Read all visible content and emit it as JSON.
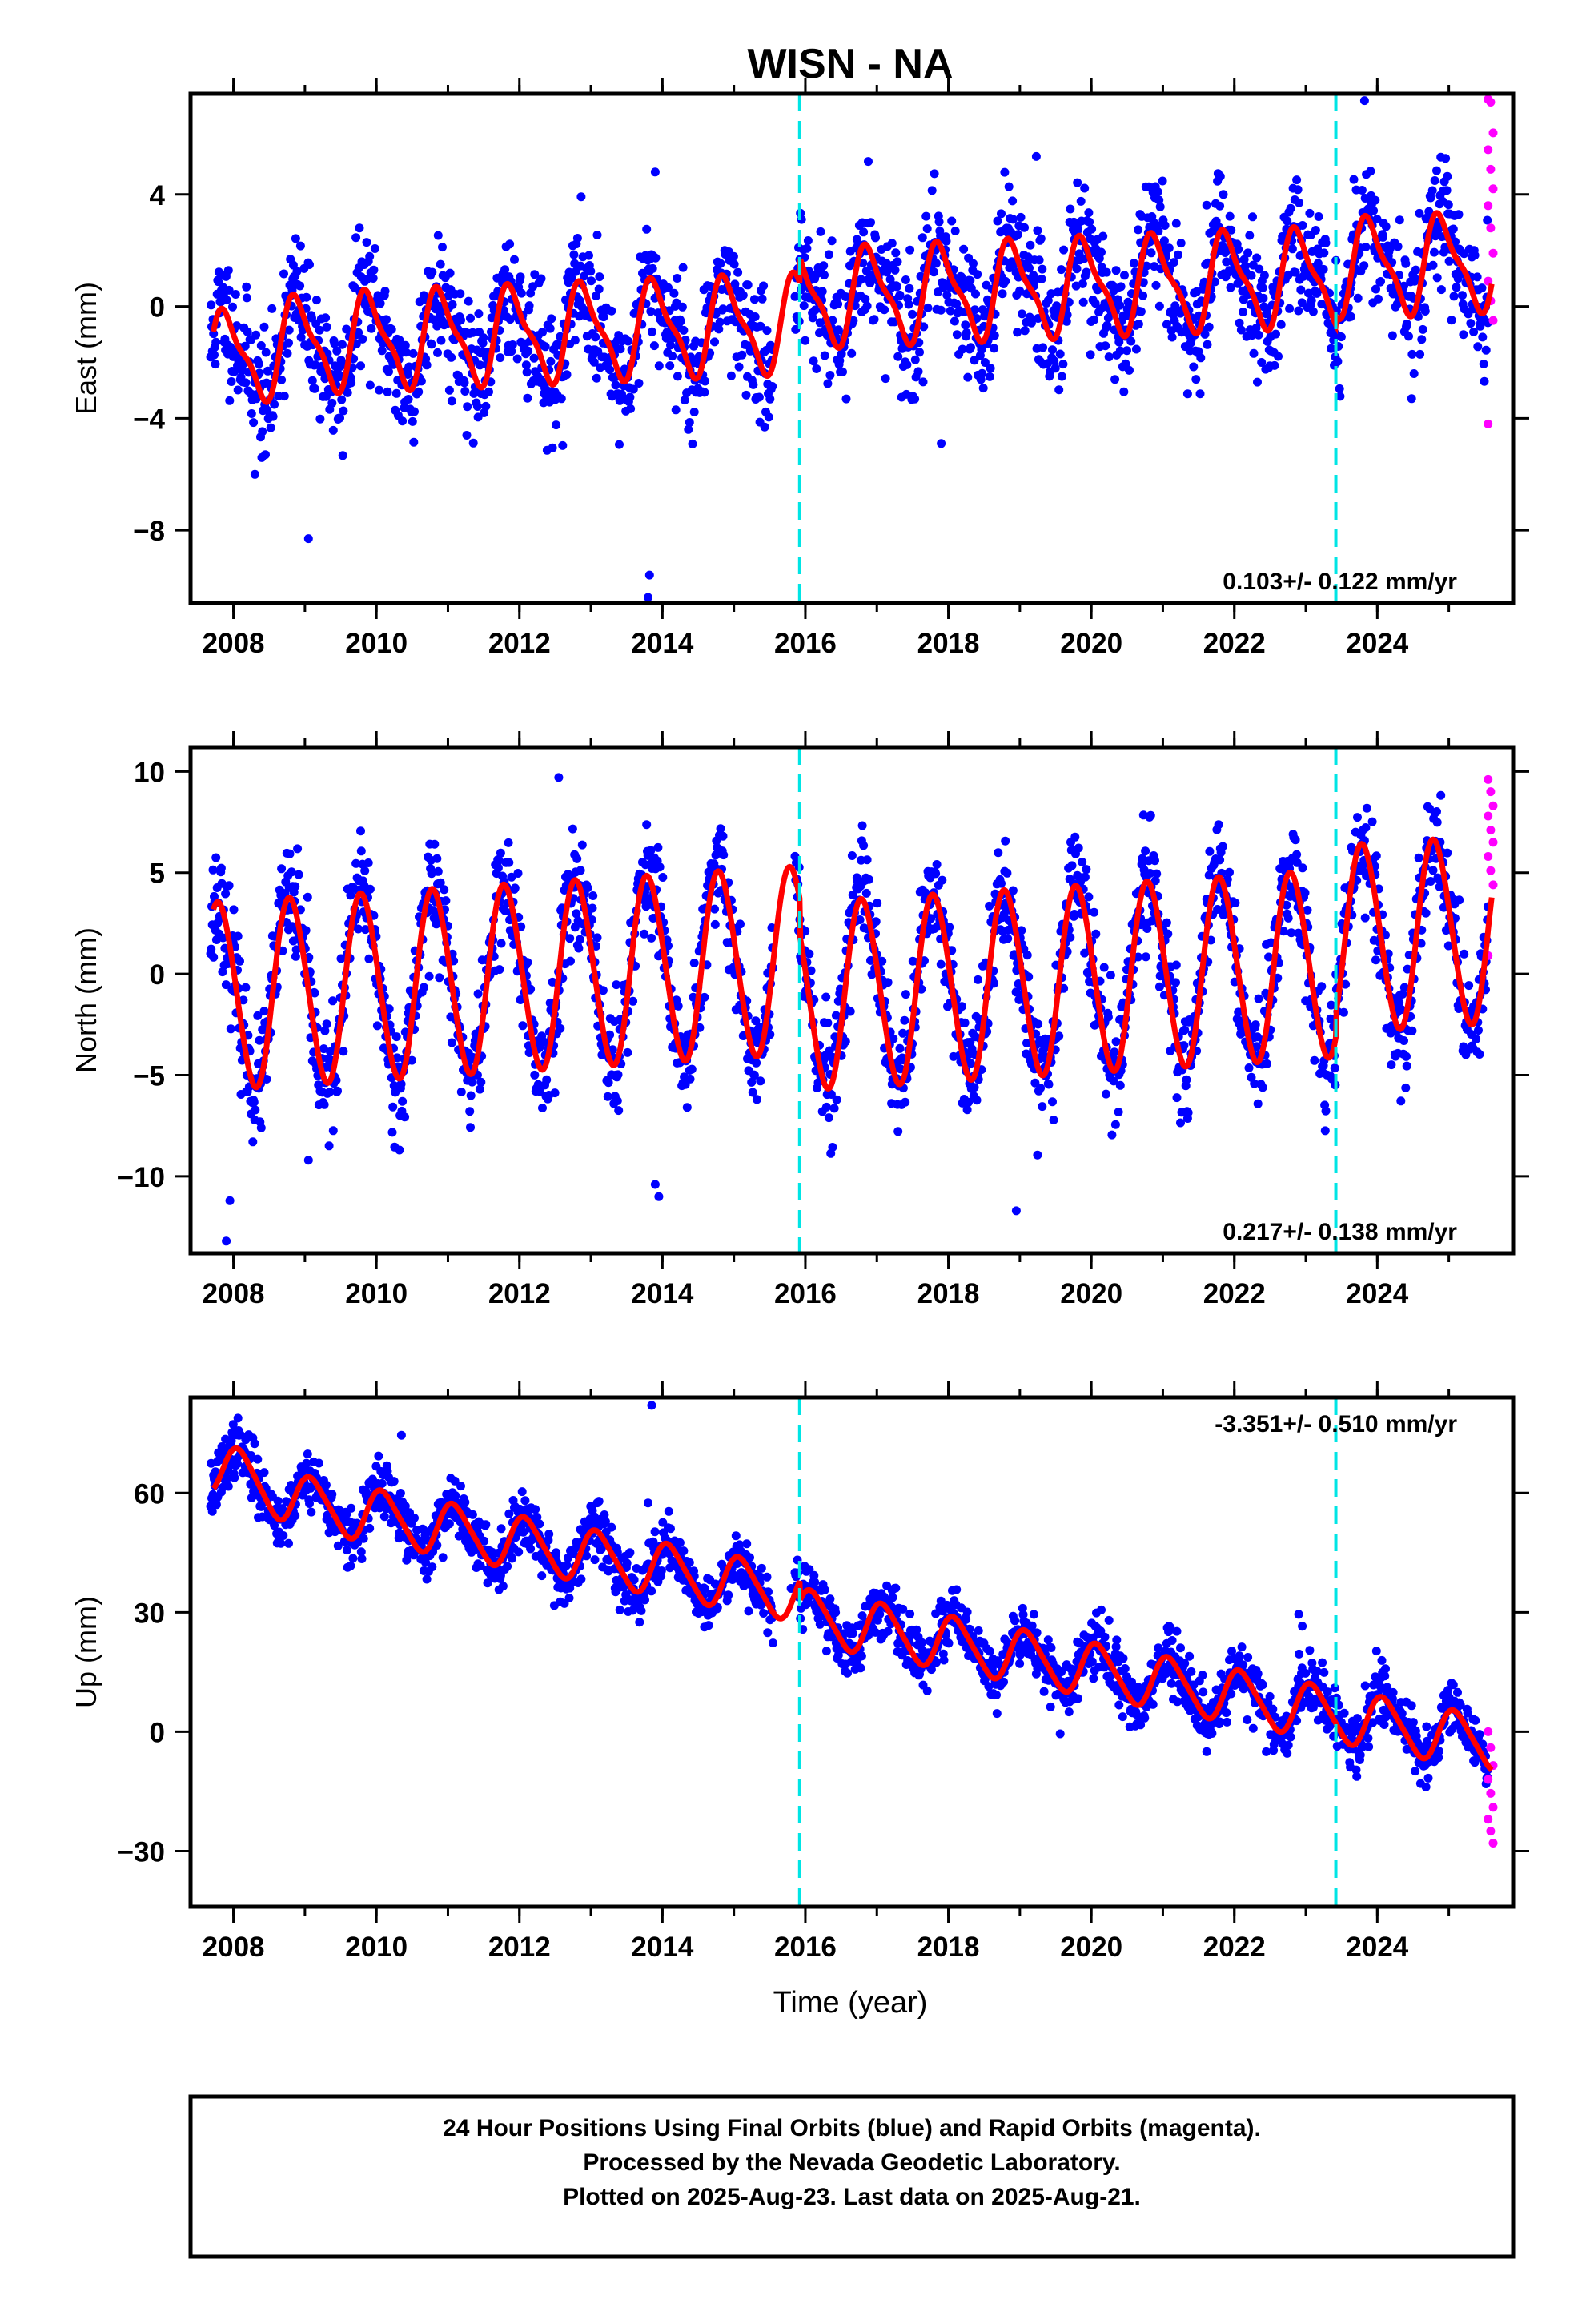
{
  "title": "WISN - NA",
  "footer": {
    "lines": [
      "24 Hour Positions Using Final Orbits (blue) and Rapid Orbits (magenta).",
      "Processed by the Nevada Geodetic Laboratory.",
      "Plotted on 2025-Aug-23. Last data on 2025-Aug-21."
    ]
  },
  "colors": {
    "final_orbits": "#0000ff",
    "rapid_orbits": "#ff00ff",
    "model_fit": "#ff0000",
    "steps": "#00e5e5"
  },
  "chart_data": [
    {
      "type": "scatter",
      "name": "east",
      "ylabel": "East (mm)",
      "xlabel": "",
      "xlim": [
        2007.4,
        2025.9
      ],
      "ylim": [
        -10.6,
        7.6
      ],
      "yticks": [
        -8,
        -4,
        0,
        4
      ],
      "xticks": [
        2008,
        2010,
        2012,
        2014,
        2016,
        2018,
        2020,
        2022,
        2024
      ],
      "rate_label": "0.103+/- 0.122 mm/yr",
      "steps": [
        2015.92,
        2023.42
      ],
      "model": {
        "offset": -0.6,
        "trend": 0.103,
        "annual_amp": 1.6,
        "phase": 0.65,
        "semiannual_amp": 0.5,
        "step_offsets": [
          0.9,
          0.3
        ],
        "early_offset": -0.4
      },
      "scatter": {
        "sigma": 1.1,
        "seed": 11
      },
      "outliers": [
        [
          2009.05,
          -8.3
        ],
        [
          2013.8,
          -10.4
        ],
        [
          2013.82,
          -9.6
        ],
        [
          2013.9,
          4.8
        ],
        [
          2008.3,
          -6.0
        ],
        [
          2017.9,
          -4.9
        ]
      ],
      "rapid": {
        "x0": 2025.55,
        "x1": 2025.62,
        "values": [
          7.4,
          7.3,
          6.2,
          5.6,
          4.9,
          4.2,
          3.6,
          2.8,
          1.9,
          0.9,
          0.2,
          -0.5,
          -4.2
        ]
      }
    },
    {
      "type": "scatter",
      "name": "north",
      "ylabel": "North (mm)",
      "xlabel": "",
      "xlim": [
        2007.4,
        2025.9
      ],
      "ylim": [
        -13.8,
        11.2
      ],
      "yticks": [
        -10,
        -5,
        0,
        5,
        10
      ],
      "xticks": [
        2008,
        2010,
        2012,
        2014,
        2016,
        2018,
        2020,
        2022,
        2024
      ],
      "rate_label": "0.217+/- 0.138 mm/yr",
      "steps": [
        2015.92,
        2023.42
      ],
      "model": {
        "offset": 0.7,
        "trend": 0.217,
        "annual_amp": 4.6,
        "phase": 0.55,
        "semiannual_amp": 0.3,
        "step_offsets": [
          -1.8,
          1.2
        ],
        "early_offset": 0.0
      },
      "scatter": {
        "sigma": 1.4,
        "seed": 23
      },
      "outliers": [
        [
          2007.9,
          -13.2
        ],
        [
          2007.95,
          -11.2
        ],
        [
          2013.95,
          -11.0
        ],
        [
          2013.9,
          -10.4
        ],
        [
          2012.55,
          9.7
        ],
        [
          2018.95,
          -11.7
        ],
        [
          2009.05,
          -9.2
        ]
      ],
      "rapid": {
        "x0": 2025.55,
        "x1": 2025.62,
        "values": [
          9.6,
          9.0,
          8.3,
          7.8,
          7.1,
          6.5,
          5.8,
          5.1,
          4.4,
          0.9
        ]
      }
    },
    {
      "type": "scatter",
      "name": "up",
      "ylabel": "Up (mm)",
      "xlabel": "Time (year)",
      "xlim": [
        2007.4,
        2025.9
      ],
      "ylim": [
        -44,
        84
      ],
      "yticks": [
        -30,
        0,
        30,
        60
      ],
      "xticks": [
        2008,
        2010,
        2012,
        2014,
        2016,
        2018,
        2020,
        2022,
        2024
      ],
      "rate_label": "-3.351+/- 0.510 mm/yr",
      "steps": [
        2015.92,
        2023.42
      ],
      "model": {
        "offset": 34.0,
        "trend": -3.351,
        "annual_amp": 6.5,
        "phase": 0.85,
        "semiannual_amp": 1.0,
        "step_offsets": [
          -5.0,
          0.0
        ],
        "early_offset": 4.0
      },
      "scatter": {
        "sigma": 3.6,
        "seed": 37
      },
      "outliers": [
        [
          2010.35,
          74.5
        ],
        [
          2013.85,
          82.0
        ],
        [
          2013.8,
          57.5
        ],
        [
          2022.9,
          29.5
        ],
        [
          2022.95,
          26.5
        ],
        [
          2015.8,
          36.0
        ],
        [
          2019.0,
          20.0
        ],
        [
          2019.85,
          15.5
        ],
        [
          2010.7,
          44.5
        ]
      ],
      "rapid": {
        "x0": 2025.55,
        "x1": 2025.62,
        "values": [
          0.0,
          -4.0,
          -8.5,
          -12.0,
          -15.5,
          -19.0,
          -22.0,
          -25.0,
          -28.0
        ]
      }
    }
  ]
}
